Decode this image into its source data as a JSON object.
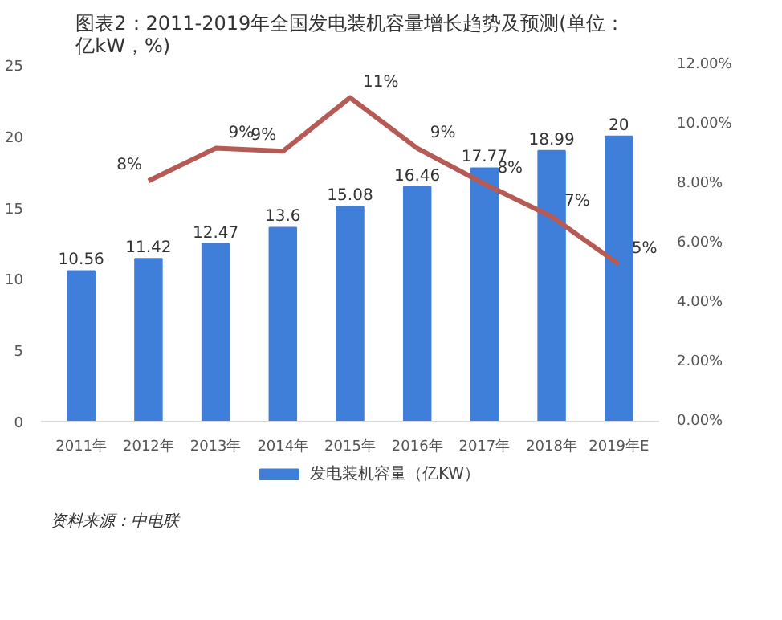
{
  "chart_data": {
    "type": "bar",
    "title": "图表2：2011-2019年全国发电装机容量增长趋势及预测(单位：亿kW，%)",
    "categories": [
      "2011年",
      "2012年",
      "2013年",
      "2014年",
      "2015年",
      "2016年",
      "2017年",
      "2018年",
      "2019年E"
    ],
    "series": [
      {
        "name": "发电装机容量（亿KW）",
        "color": "#3f7fd9",
        "values": [
          10.56,
          11.42,
          12.47,
          13.6,
          15.08,
          16.46,
          17.77,
          18.99,
          20
        ],
        "value_labels": [
          "10.56",
          "11.42",
          "12.47",
          "13.6",
          "15.08",
          "16.46",
          "17.77",
          "18.99",
          "20"
        ]
      },
      {
        "type": "line",
        "axis": "y2",
        "color": "#b55a55",
        "values": [
          null,
          8.1,
          9.2,
          9.1,
          10.9,
          9.2,
          8.0,
          6.9,
          5.3
        ],
        "value_labels": [
          null,
          "8%",
          "9%",
          "9%",
          "11%",
          "9%",
          "8%",
          "7%",
          "5%"
        ]
      }
    ],
    "ylim": [
      0,
      25
    ],
    "yticks": [
      0,
      5,
      10,
      15,
      20,
      25
    ],
    "y2lim": [
      0,
      12
    ],
    "y2ticks": [
      {
        "value": 0,
        "label": "0.00%"
      },
      {
        "value": 2,
        "label": "2.00%"
      },
      {
        "value": 4,
        "label": "4.00%"
      },
      {
        "value": 6,
        "label": "6.00%"
      },
      {
        "value": 8,
        "label": "8.00%"
      },
      {
        "value": 10,
        "label": "10.00%"
      },
      {
        "value": 12,
        "label": "12.00%"
      }
    ],
    "grid": false,
    "legend": "bottom",
    "annotations": [
      "资料来源：中电联"
    ]
  }
}
